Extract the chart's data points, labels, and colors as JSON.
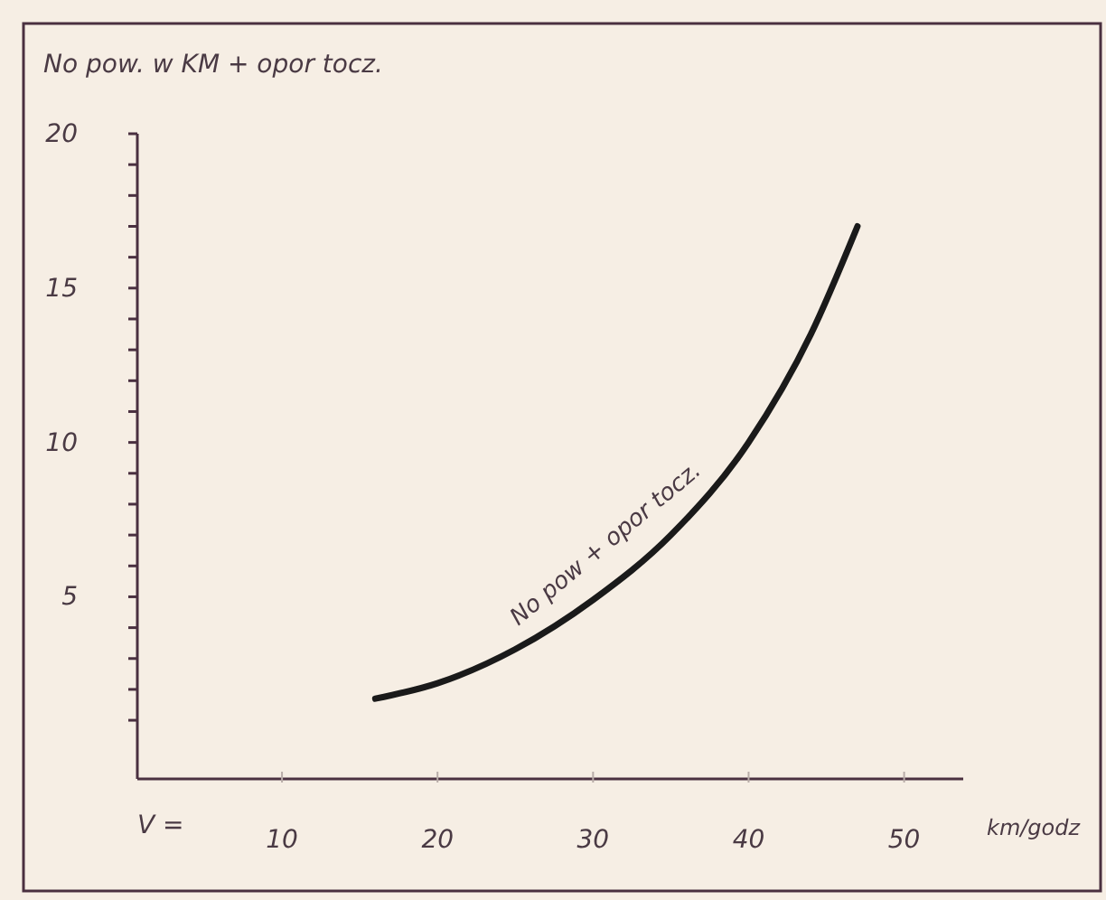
{
  "chart_data": {
    "type": "line",
    "ylabel": "No pow. w KM + opor tocz.",
    "xlabel": "km/godz",
    "annotations": [
      "V ="
    ],
    "xlim": [
      0.7,
      53.8
    ],
    "xticks": [
      10,
      20,
      30,
      40,
      50
    ],
    "ylim": [
      -0.9,
      20
    ],
    "yticks": [
      {
        "value": 1,
        "label": null
      },
      {
        "value": 2,
        "label": null
      },
      {
        "value": 3,
        "label": null
      },
      {
        "value": 4,
        "label": null
      },
      5,
      {
        "value": 6,
        "label": null
      },
      {
        "value": 7,
        "label": null
      },
      {
        "value": 8,
        "label": null
      },
      {
        "value": 9,
        "label": null
      },
      10,
      {
        "value": 11,
        "label": null
      },
      {
        "value": 12,
        "label": null
      },
      {
        "value": 13,
        "label": null
      },
      {
        "value": 14,
        "label": null
      },
      15,
      {
        "value": 16,
        "label": null
      },
      {
        "value": 17,
        "label": null
      },
      {
        "value": 18,
        "label": null
      },
      {
        "value": 19,
        "label": null
      },
      20
    ],
    "grid": false,
    "legend": false,
    "marker": "none",
    "line_style": "solid",
    "series": [
      {
        "name": "No pow + opor tocz.",
        "color": "#1a1a1a",
        "x": [
          16,
          20,
          25,
          30,
          35,
          40,
          44,
          47
        ],
        "values": [
          1.7,
          2.2,
          3.3,
          4.9,
          7.0,
          10.0,
          13.5,
          17.0
        ]
      }
    ]
  }
}
